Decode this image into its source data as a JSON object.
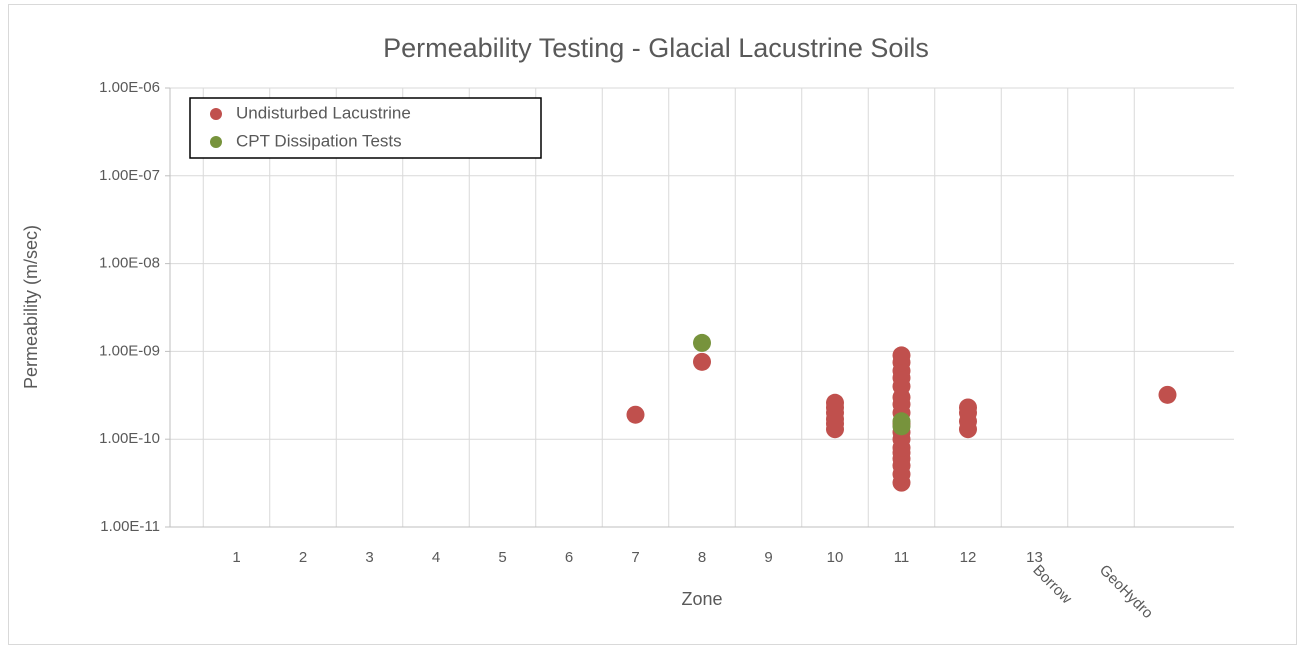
{
  "chart_data": {
    "type": "scatter",
    "title": "Permeability Testing - Glacial Lacustrine Soils",
    "x_label": "Zone",
    "y_label": "Permeability (m/sec)",
    "categories": [
      "1",
      "2",
      "3",
      "4",
      "5",
      "6",
      "7",
      "8",
      "9",
      "10",
      "11",
      "12",
      "13",
      "Borrow",
      "GeoHydro"
    ],
    "log_y": true,
    "grid": true,
    "legend": "top-left",
    "ylim": [
      1e-11,
      1e-06
    ],
    "yticks": [
      {
        "value": 1e-11,
        "label": "1.00E-11"
      },
      {
        "value": 1e-10,
        "label": "1.00E-10"
      },
      {
        "value": 1e-09,
        "label": "1.00E-09"
      },
      {
        "value": 1e-08,
        "label": "1.00E-08"
      },
      {
        "value": 1e-07,
        "label": "1.00E-07"
      },
      {
        "value": 1e-06,
        "label": "1.00E-06"
      }
    ],
    "series": [
      {
        "name": "Undisturbed Lacustrine",
        "color": "#c0504d",
        "x": [
          "7",
          "8",
          "10",
          "10",
          "10",
          "10",
          "10",
          "10",
          "11",
          "11",
          "11",
          "11",
          "11",
          "11",
          "11",
          "11",
          "11",
          "11",
          "11",
          "11",
          "11",
          "11",
          "11",
          "11",
          "11",
          "12",
          "12",
          "12",
          "12",
          "GeoHydro"
        ],
        "values": [
          1.9e-10,
          7.6e-10,
          1.3e-10,
          1.5e-10,
          1.7e-10,
          2e-10,
          2.3e-10,
          2.6e-10,
          3.2e-11,
          4e-11,
          5e-11,
          6e-11,
          7e-11,
          8e-11,
          1e-10,
          1.2e-10,
          1.5e-10,
          2e-10,
          2.5e-10,
          3e-10,
          4e-10,
          5e-10,
          6e-10,
          7.5e-10,
          9e-10,
          1.3e-10,
          1.6e-10,
          2e-10,
          2.3e-10,
          3.2e-10
        ]
      },
      {
        "name": "CPT Dissipation Tests",
        "color": "#77933c",
        "x": [
          "8",
          "11",
          "11"
        ],
        "values": [
          1.25e-09,
          1.4e-10,
          1.6e-10
        ]
      }
    ]
  }
}
